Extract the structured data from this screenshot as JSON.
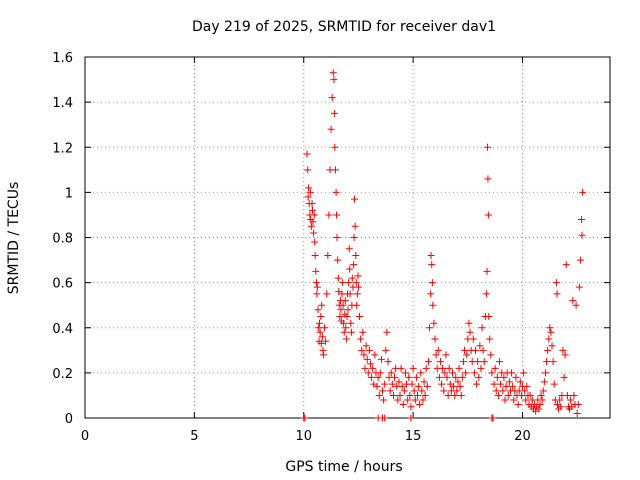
{
  "chart_data": {
    "type": "scatter",
    "title": "Day 219 of 2025, SRMTID for receiver dav1",
    "xlabel": "GPS time / hours",
    "ylabel": "SRMTID / TECUs",
    "xlim": [
      0,
      24
    ],
    "ylim": [
      0,
      1.6
    ],
    "xticks": [
      0,
      5,
      10,
      15,
      20
    ],
    "xtick_labels": [
      "0",
      "5",
      "10",
      "15",
      "20"
    ],
    "yticks": [
      0,
      0.2,
      0.4,
      0.6,
      0.8,
      1.0,
      1.2,
      1.4,
      1.6
    ],
    "ytick_labels": [
      "0",
      "0.2",
      "0.4",
      "0.6",
      "0.8",
      "1",
      "1.2",
      "1.4",
      "1.6"
    ],
    "grid": true,
    "marker": "+",
    "color": "#ff0000",
    "series": [
      {
        "name": "SRMTID dav1",
        "points": [
          [
            10.0,
            0.0
          ],
          [
            10.05,
            0.0
          ],
          [
            10.15,
            1.17
          ],
          [
            10.18,
            1.1
          ],
          [
            10.2,
            0.98
          ],
          [
            10.22,
            1.02
          ],
          [
            10.25,
            0.95
          ],
          [
            10.28,
            0.9
          ],
          [
            10.3,
            1.0
          ],
          [
            10.32,
            0.88
          ],
          [
            10.35,
            0.85
          ],
          [
            10.38,
            0.95
          ],
          [
            10.4,
            0.92
          ],
          [
            10.42,
            0.87
          ],
          [
            10.45,
            0.82
          ],
          [
            10.48,
            0.9
          ],
          [
            10.5,
            0.78
          ],
          [
            10.52,
            0.72
          ],
          [
            10.55,
            0.65
          ],
          [
            10.58,
            0.6
          ],
          [
            10.6,
            0.55
          ],
          [
            10.62,
            0.58
          ],
          [
            10.65,
            0.48
          ],
          [
            10.68,
            0.4
          ],
          [
            10.7,
            0.34
          ],
          [
            10.72,
            0.42
          ],
          [
            10.75,
            0.38
          ],
          [
            10.78,
            0.45
          ],
          [
            10.8,
            0.33
          ],
          [
            10.82,
            0.5
          ],
          [
            10.85,
            0.36
          ],
          [
            10.88,
            0.3
          ],
          [
            10.9,
            0.28
          ],
          [
            10.95,
            0.4
          ],
          [
            11.0,
            0.34
          ],
          [
            11.05,
            0.55
          ],
          [
            11.1,
            0.72
          ],
          [
            11.15,
            0.9
          ],
          [
            11.2,
            1.1
          ],
          [
            11.25,
            1.28
          ],
          [
            11.3,
            1.42
          ],
          [
            11.35,
            1.53
          ],
          [
            11.38,
            1.5
          ],
          [
            11.4,
            1.35
          ],
          [
            11.42,
            1.2
          ],
          [
            11.45,
            1.1
          ],
          [
            11.48,
            1.0
          ],
          [
            11.5,
            0.9
          ],
          [
            11.52,
            0.8
          ],
          [
            11.55,
            0.7
          ],
          [
            11.58,
            0.62
          ],
          [
            11.6,
            0.56
          ],
          [
            11.62,
            0.5
          ],
          [
            11.65,
            0.45
          ],
          [
            11.68,
            0.52
          ],
          [
            11.7,
            0.48
          ],
          [
            11.72,
            0.43
          ],
          [
            11.75,
            0.55
          ],
          [
            11.78,
            0.6
          ],
          [
            11.8,
            0.5
          ],
          [
            11.82,
            0.42
          ],
          [
            11.85,
            0.38
          ],
          [
            11.88,
            0.46
          ],
          [
            11.9,
            0.52
          ],
          [
            11.92,
            0.4
          ],
          [
            11.95,
            0.35
          ],
          [
            11.98,
            0.45
          ],
          [
            12.0,
            0.55
          ],
          [
            12.02,
            0.48
          ],
          [
            12.05,
            0.6
          ],
          [
            12.08,
            0.75
          ],
          [
            12.1,
            0.66
          ],
          [
            12.12,
            0.55
          ],
          [
            12.15,
            0.42
          ],
          [
            12.18,
            0.38
          ],
          [
            12.2,
            0.5
          ],
          [
            12.22,
            0.62
          ],
          [
            12.25,
            0.58
          ],
          [
            12.28,
            0.68
          ],
          [
            12.3,
            0.8
          ],
          [
            12.32,
            0.97
          ],
          [
            12.35,
            0.85
          ],
          [
            12.38,
            0.72
          ],
          [
            12.4,
            0.6
          ],
          [
            12.42,
            0.5
          ],
          [
            12.45,
            0.55
          ],
          [
            12.48,
            0.63
          ],
          [
            12.5,
            0.58
          ],
          [
            12.55,
            0.45
          ],
          [
            12.6,
            0.35
          ],
          [
            12.65,
            0.3
          ],
          [
            12.7,
            0.38
          ],
          [
            12.75,
            0.28
          ],
          [
            12.8,
            0.22
          ],
          [
            12.85,
            0.32
          ],
          [
            12.9,
            0.26
          ],
          [
            12.95,
            0.2
          ],
          [
            13.0,
            0.3
          ],
          [
            13.05,
            0.24
          ],
          [
            13.1,
            0.18
          ],
          [
            13.15,
            0.22
          ],
          [
            13.2,
            0.15
          ],
          [
            13.25,
            0.28
          ],
          [
            13.3,
            0.2
          ],
          [
            13.35,
            0.14
          ],
          [
            13.4,
            0.18
          ],
          [
            13.45,
            0.1
          ],
          [
            13.5,
            0.2
          ],
          [
            13.55,
            0.26
          ],
          [
            13.6,
            0.12
          ],
          [
            13.65,
            0.08
          ],
          [
            13.7,
            0.15
          ],
          [
            13.75,
            0.3
          ],
          [
            13.8,
            0.38
          ],
          [
            13.85,
            0.25
          ],
          [
            13.9,
            0.18
          ],
          [
            13.95,
            0.12
          ],
          [
            14.0,
            0.2
          ],
          [
            14.05,
            0.15
          ],
          [
            14.1,
            0.1
          ],
          [
            14.15,
            0.18
          ],
          [
            14.2,
            0.22
          ],
          [
            14.25,
            0.14
          ],
          [
            14.3,
            0.08
          ],
          [
            14.35,
            0.16
          ],
          [
            14.4,
            0.1
          ],
          [
            14.45,
            0.22
          ],
          [
            14.5,
            0.14
          ],
          [
            14.55,
            0.06
          ],
          [
            14.6,
            0.12
          ],
          [
            14.65,
            0.2
          ],
          [
            14.7,
            0.15
          ],
          [
            14.75,
            0.08
          ],
          [
            14.8,
            0.18
          ],
          [
            14.85,
            0.1
          ],
          [
            14.9,
            0.05
          ],
          [
            14.95,
            0.15
          ],
          [
            15.0,
            0.22
          ],
          [
            15.05,
            0.12
          ],
          [
            15.1,
            0.08
          ],
          [
            15.15,
            0.18
          ],
          [
            15.2,
            0.1
          ],
          [
            15.25,
            0.14
          ],
          [
            15.3,
            0.06
          ],
          [
            15.35,
            0.2
          ],
          [
            15.4,
            0.12
          ],
          [
            15.45,
            0.08
          ],
          [
            15.5,
            0.16
          ],
          [
            15.55,
            0.1
          ],
          [
            15.6,
            0.22
          ],
          [
            15.65,
            0.14
          ],
          [
            15.7,
            0.25
          ],
          [
            15.75,
            0.4
          ],
          [
            15.8,
            0.55
          ],
          [
            15.82,
            0.72
          ],
          [
            15.85,
            0.68
          ],
          [
            15.88,
            0.6
          ],
          [
            15.9,
            0.5
          ],
          [
            15.95,
            0.42
          ],
          [
            16.0,
            0.35
          ],
          [
            16.05,
            0.28
          ],
          [
            16.1,
            0.22
          ],
          [
            16.15,
            0.3
          ],
          [
            16.2,
            0.18
          ],
          [
            16.25,
            0.25
          ],
          [
            16.3,
            0.15
          ],
          [
            16.35,
            0.22
          ],
          [
            16.4,
            0.12
          ],
          [
            16.45,
            0.2
          ],
          [
            16.5,
            0.28
          ],
          [
            16.55,
            0.18
          ],
          [
            16.6,
            0.1
          ],
          [
            16.65,
            0.22
          ],
          [
            16.7,
            0.15
          ],
          [
            16.75,
            0.12
          ],
          [
            16.8,
            0.2
          ],
          [
            16.85,
            0.14
          ],
          [
            16.9,
            0.1
          ],
          [
            16.95,
            0.18
          ],
          [
            17.0,
            0.12
          ],
          [
            17.05,
            0.16
          ],
          [
            17.1,
            0.22
          ],
          [
            17.15,
            0.14
          ],
          [
            17.2,
            0.1
          ],
          [
            17.25,
            0.18
          ],
          [
            17.3,
            0.25
          ],
          [
            17.35,
            0.3
          ],
          [
            17.4,
            0.2
          ],
          [
            17.45,
            0.28
          ],
          [
            17.5,
            0.35
          ],
          [
            17.55,
            0.42
          ],
          [
            17.6,
            0.38
          ],
          [
            17.65,
            0.3
          ],
          [
            17.7,
            0.25
          ],
          [
            17.75,
            0.35
          ],
          [
            17.8,
            0.2
          ],
          [
            17.85,
            0.3
          ],
          [
            17.9,
            0.15
          ],
          [
            17.95,
            0.25
          ],
          [
            18.0,
            0.18
          ],
          [
            18.05,
            0.32
          ],
          [
            18.1,
            0.22
          ],
          [
            18.15,
            0.4
          ],
          [
            18.2,
            0.3
          ],
          [
            18.25,
            0.25
          ],
          [
            18.3,
            0.45
          ],
          [
            18.35,
            0.55
          ],
          [
            18.38,
            0.65
          ],
          [
            18.4,
            1.2
          ],
          [
            18.42,
            1.06
          ],
          [
            18.44,
            0.9
          ],
          [
            18.46,
            0.45
          ],
          [
            18.5,
            0.35
          ],
          [
            18.55,
            0.28
          ],
          [
            18.6,
            0.2
          ],
          [
            18.65,
            0.0
          ],
          [
            18.7,
            0.15
          ],
          [
            18.75,
            0.22
          ],
          [
            18.8,
            0.12
          ],
          [
            18.85,
            0.18
          ],
          [
            18.9,
            0.1
          ],
          [
            18.95,
            0.25
          ],
          [
            19.0,
            0.15
          ],
          [
            19.05,
            0.2
          ],
          [
            19.1,
            0.12
          ],
          [
            19.15,
            0.18
          ],
          [
            19.2,
            0.08
          ],
          [
            19.25,
            0.14
          ],
          [
            19.3,
            0.2
          ],
          [
            19.35,
            0.1
          ],
          [
            19.4,
            0.16
          ],
          [
            19.45,
            0.12
          ],
          [
            19.5,
            0.2
          ],
          [
            19.55,
            0.14
          ],
          [
            19.6,
            0.08
          ],
          [
            19.65,
            0.12
          ],
          [
            19.7,
            0.18
          ],
          [
            19.75,
            0.1
          ],
          [
            19.8,
            0.06
          ],
          [
            19.85,
            0.12
          ],
          [
            19.9,
            0.16
          ],
          [
            19.95,
            0.1
          ],
          [
            20.0,
            0.14
          ],
          [
            20.05,
            0.2
          ],
          [
            20.1,
            0.12
          ],
          [
            20.15,
            0.08
          ],
          [
            20.2,
            0.14
          ],
          [
            20.25,
            0.1
          ],
          [
            20.3,
            0.06
          ],
          [
            20.35,
            0.1
          ],
          [
            20.4,
            0.05
          ],
          [
            20.45,
            0.08
          ],
          [
            20.5,
            0.04
          ],
          [
            20.55,
            0.06
          ],
          [
            20.6,
            0.03
          ],
          [
            20.65,
            0.05
          ],
          [
            20.7,
            0.08
          ],
          [
            20.75,
            0.04
          ],
          [
            20.8,
            0.06
          ],
          [
            20.85,
            0.1
          ],
          [
            20.9,
            0.08
          ],
          [
            20.95,
            0.12
          ],
          [
            21.0,
            0.16
          ],
          [
            21.05,
            0.2
          ],
          [
            21.1,
            0.25
          ],
          [
            21.15,
            0.3
          ],
          [
            21.2,
            0.35
          ],
          [
            21.25,
            0.4
          ],
          [
            21.3,
            0.38
          ],
          [
            21.35,
            0.32
          ],
          [
            21.4,
            0.25
          ],
          [
            21.45,
            0.15
          ],
          [
            21.5,
            0.08
          ],
          [
            21.55,
            0.6
          ],
          [
            21.58,
            0.55
          ],
          [
            21.6,
            0.06
          ],
          [
            21.65,
            0.04
          ],
          [
            21.7,
            0.08
          ],
          [
            21.75,
            0.05
          ],
          [
            21.8,
            0.1
          ],
          [
            21.85,
            0.3
          ],
          [
            21.9,
            0.18
          ],
          [
            21.95,
            0.28
          ],
          [
            22.0,
            0.68
          ],
          [
            22.05,
            0.1
          ],
          [
            22.1,
            0.05
          ],
          [
            22.15,
            0.04
          ],
          [
            22.2,
            0.08
          ],
          [
            22.25,
            0.05
          ],
          [
            22.3,
            0.52
          ],
          [
            22.35,
            0.1
          ],
          [
            22.4,
            0.06
          ],
          [
            22.45,
            0.5
          ],
          [
            22.5,
            0.02
          ],
          [
            22.55,
            0.06
          ],
          [
            22.6,
            0.58
          ],
          [
            22.65,
            0.7
          ],
          [
            22.7,
            0.88
          ],
          [
            22.72,
            0.81
          ],
          [
            22.75,
            1.0
          ],
          [
            13.6,
            0.0
          ],
          [
            13.7,
            0.0
          ],
          [
            13.4,
            0.0
          ],
          [
            14.9,
            0.0
          ],
          [
            18.6,
            0.0
          ]
        ]
      }
    ]
  }
}
